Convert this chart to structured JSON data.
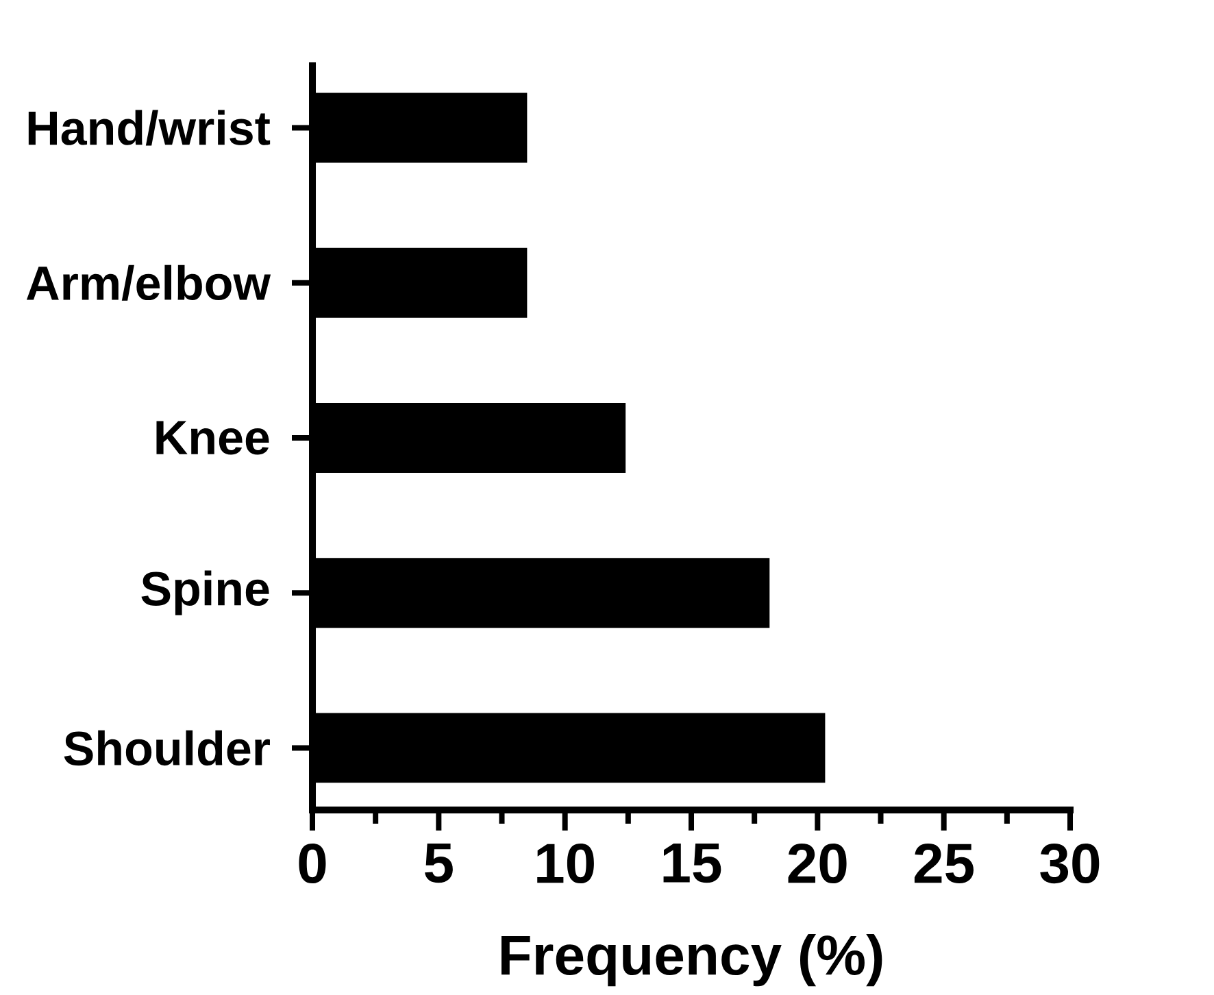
{
  "chart_data": {
    "type": "bar",
    "orientation": "horizontal",
    "xlabel": "Frequency (%)",
    "categories": [
      "Hand/wrist",
      "Arm/elbow",
      "Knee",
      "Spine",
      "Shoulder"
    ],
    "values": [
      8.5,
      8.5,
      12.4,
      18.1,
      20.3
    ],
    "color": "#000000",
    "xlim": [
      0,
      30
    ],
    "xticks": [
      0,
      {
        "value": 2.5,
        "label": null
      },
      5,
      {
        "value": 7.5,
        "label": null
      },
      10,
      {
        "value": 12.5,
        "label": null
      },
      15,
      {
        "value": 17.5,
        "label": null
      },
      20,
      {
        "value": 22.5,
        "label": null
      },
      25,
      {
        "value": 27.5,
        "label": null
      },
      30
    ]
  }
}
